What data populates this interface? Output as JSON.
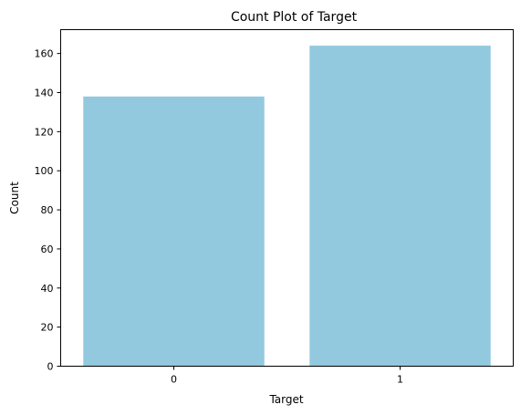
{
  "chart_data": {
    "type": "bar",
    "title": "Count Plot of Target",
    "xlabel": "Target",
    "ylabel": "Count",
    "categories": [
      "0",
      "1"
    ],
    "values": [
      138,
      164
    ],
    "ylim": [
      0,
      172.2
    ],
    "yticks": [
      0,
      20,
      40,
      60,
      80,
      100,
      120,
      140,
      160
    ],
    "grid": false,
    "bar_color": "#92c9df"
  }
}
